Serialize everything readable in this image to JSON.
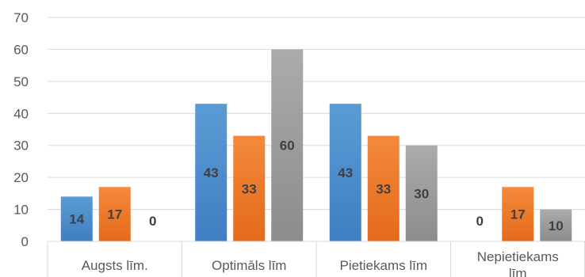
{
  "chart_data": {
    "type": "bar",
    "title": "",
    "xlabel": "",
    "ylabel": "",
    "categories": [
      "Augsts līm.",
      "Optimāls līm",
      "Pietiekams līm",
      "Nepietiekams līm"
    ],
    "series": [
      {
        "values": [
          14,
          43,
          43,
          0
        ],
        "color": "#4a8fd4"
      },
      {
        "values": [
          17,
          33,
          33,
          17
        ],
        "color": "#f07c2c"
      },
      {
        "values": [
          0,
          60,
          30,
          10
        ],
        "color": "#9e9e9e"
      }
    ],
    "ylim": [
      0,
      70
    ],
    "yticks": [
      0,
      10,
      20,
      30,
      40,
      50,
      60,
      70
    ],
    "grid": true,
    "legend": "none",
    "data_labels": true
  }
}
